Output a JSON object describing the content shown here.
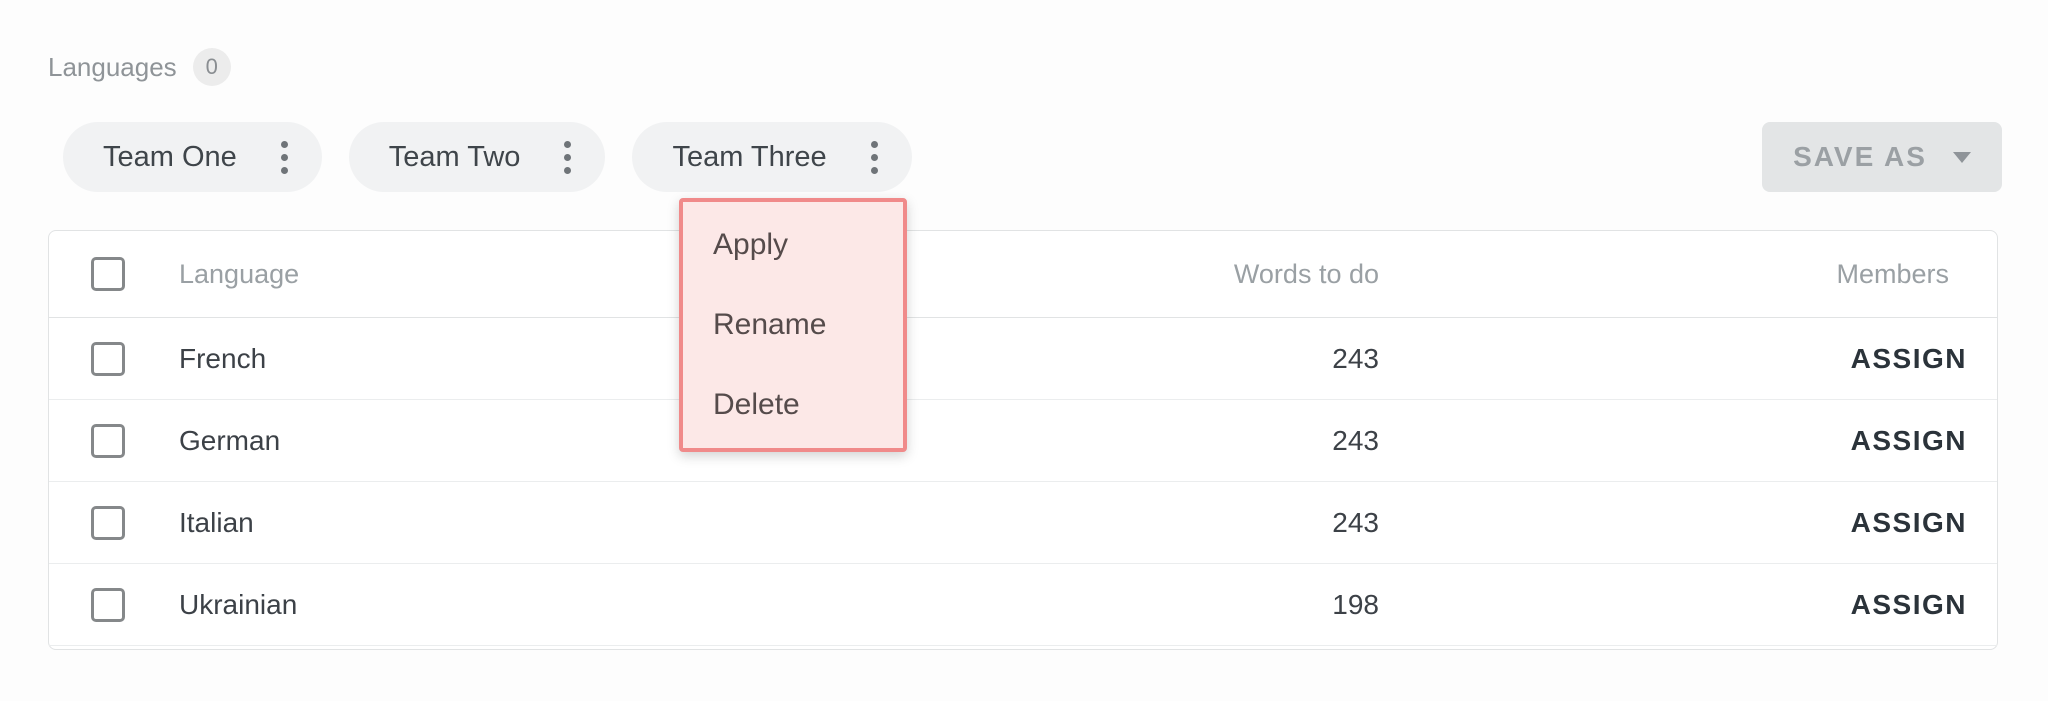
{
  "header": {
    "title": "Languages",
    "count": "0"
  },
  "toolbar": {
    "teams": [
      {
        "label": "Team One"
      },
      {
        "label": "Team Two"
      },
      {
        "label": "Team Three"
      }
    ],
    "save_as_label": "SAVE AS"
  },
  "context_menu": {
    "attached_to": "Team Three",
    "items": [
      "Apply",
      "Rename",
      "Delete"
    ]
  },
  "table": {
    "columns": {
      "language": "Language",
      "words": "Words to do",
      "members": "Members"
    },
    "rows": [
      {
        "language": "French",
        "words": "243",
        "assign_label": "ASSIGN"
      },
      {
        "language": "German",
        "words": "243",
        "assign_label": "ASSIGN"
      },
      {
        "language": "Italian",
        "words": "243",
        "assign_label": "ASSIGN"
      },
      {
        "language": "Ukrainian",
        "words": "198",
        "assign_label": "ASSIGN"
      }
    ]
  },
  "icons": {
    "kebab": "kebab-menu-icon (three vertical dots)",
    "caret": "caret-down-icon (filled triangle)"
  },
  "colors": {
    "menu_bg": "#fce8e7",
    "menu_border": "#f08a8a",
    "chip_bg": "#f1f2f3",
    "button_bg": "#e3e5e6",
    "muted_text": "#9aa0a4",
    "body_text": "#3c4147"
  }
}
